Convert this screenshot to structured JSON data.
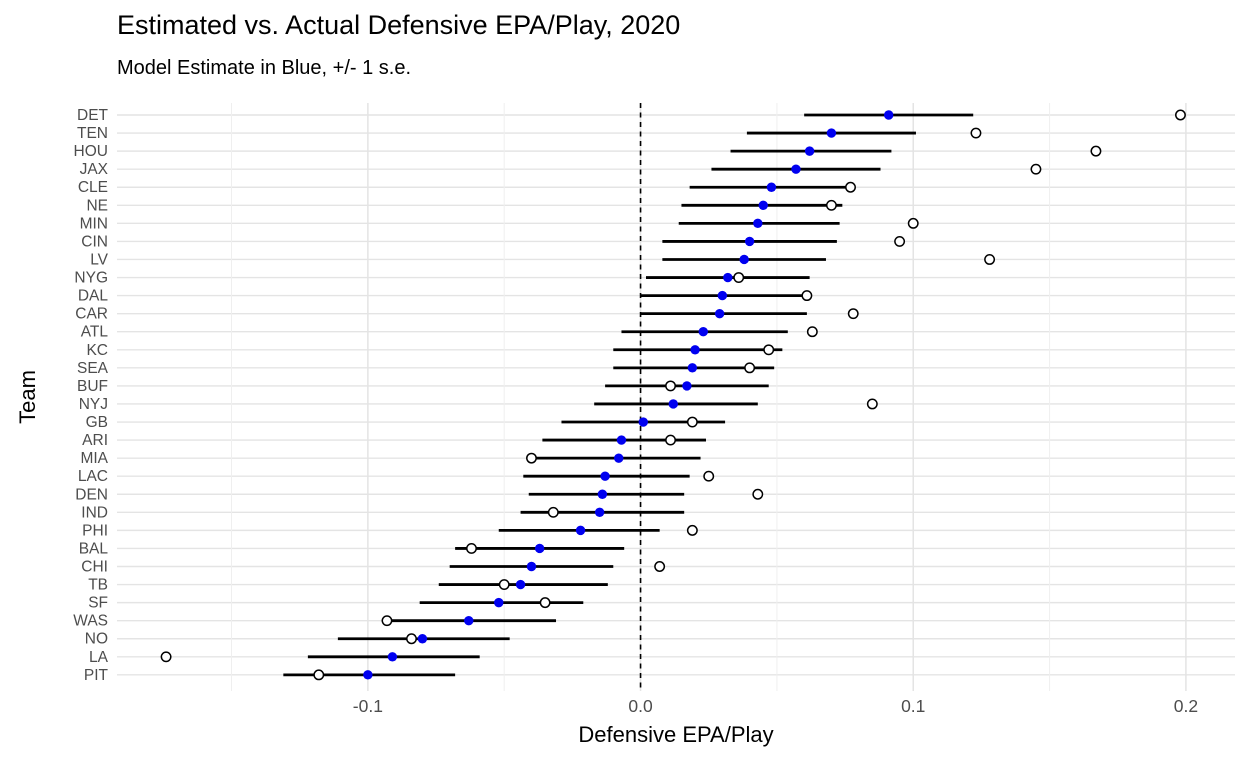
{
  "title": "Estimated vs. Actual Defensive EPA/Play, 2020",
  "subtitle": "Model Estimate in Blue, +/- 1 s.e.",
  "colors": {
    "estimate_blue": "#0000F0",
    "actual_outline": "#000000",
    "error_bar": "#000000",
    "zero_line": "#000000",
    "grid_major": "#E4E4E4",
    "grid_minor": "#EFEFEF",
    "tick_text": "#4D4D4D",
    "background": "#FFFFFF"
  },
  "chart_data": {
    "type": "scatter",
    "variant": "dot-and-error-bar (forest plot), horizontal",
    "title": "Estimated vs. Actual Defensive EPA/Play, 2020",
    "subtitle": "Model Estimate in Blue, +/- 1 s.e.",
    "xlabel": "Defensive EPA/Play",
    "ylabel": "Team",
    "xlim": [
      -0.192,
      0.218
    ],
    "x_major_ticks": [
      -0.1,
      0.0,
      0.1,
      0.2
    ],
    "x_tick_labels": [
      "-0.1",
      "0.0",
      "0.1",
      "0.2"
    ],
    "x_minor_ticks": [
      -0.15,
      -0.05,
      0.05,
      0.15
    ],
    "zero_reference_line": {
      "x": 0.0,
      "style": "dashed"
    },
    "grid": true,
    "legend_position": "none",
    "series_legend": [
      {
        "name": "Model Estimate (+/- 1 s.e.)",
        "marker": "filled-circle",
        "color": "#0000F0"
      },
      {
        "name": "Actual",
        "marker": "open-circle",
        "color": "#000000"
      }
    ],
    "rows": [
      {
        "team": "DET",
        "estimate": 0.091,
        "lower": 0.06,
        "upper": 0.122,
        "actual": 0.198
      },
      {
        "team": "TEN",
        "estimate": 0.07,
        "lower": 0.039,
        "upper": 0.101,
        "actual": 0.123
      },
      {
        "team": "HOU",
        "estimate": 0.062,
        "lower": 0.033,
        "upper": 0.092,
        "actual": 0.167
      },
      {
        "team": "JAX",
        "estimate": 0.057,
        "lower": 0.026,
        "upper": 0.088,
        "actual": 0.145
      },
      {
        "team": "CLE",
        "estimate": 0.048,
        "lower": 0.018,
        "upper": 0.077,
        "actual": 0.077
      },
      {
        "team": "NE",
        "estimate": 0.045,
        "lower": 0.015,
        "upper": 0.074,
        "actual": 0.07
      },
      {
        "team": "MIN",
        "estimate": 0.043,
        "lower": 0.014,
        "upper": 0.073,
        "actual": 0.1
      },
      {
        "team": "CIN",
        "estimate": 0.04,
        "lower": 0.008,
        "upper": 0.072,
        "actual": 0.095
      },
      {
        "team": "LV",
        "estimate": 0.038,
        "lower": 0.008,
        "upper": 0.068,
        "actual": 0.128
      },
      {
        "team": "NYG",
        "estimate": 0.032,
        "lower": 0.002,
        "upper": 0.062,
        "actual": 0.036
      },
      {
        "team": "DAL",
        "estimate": 0.03,
        "lower": 0.0,
        "upper": 0.06,
        "actual": 0.061
      },
      {
        "team": "CAR",
        "estimate": 0.029,
        "lower": 0.0,
        "upper": 0.061,
        "actual": 0.078
      },
      {
        "team": "ATL",
        "estimate": 0.023,
        "lower": -0.007,
        "upper": 0.054,
        "actual": 0.063
      },
      {
        "team": "KC",
        "estimate": 0.02,
        "lower": -0.01,
        "upper": 0.052,
        "actual": 0.047
      },
      {
        "team": "SEA",
        "estimate": 0.019,
        "lower": -0.01,
        "upper": 0.049,
        "actual": 0.04
      },
      {
        "team": "BUF",
        "estimate": 0.017,
        "lower": -0.013,
        "upper": 0.047,
        "actual": 0.011
      },
      {
        "team": "NYJ",
        "estimate": 0.012,
        "lower": -0.017,
        "upper": 0.043,
        "actual": 0.085
      },
      {
        "team": "GB",
        "estimate": 0.001,
        "lower": -0.029,
        "upper": 0.031,
        "actual": 0.019
      },
      {
        "team": "ARI",
        "estimate": -0.007,
        "lower": -0.036,
        "upper": 0.024,
        "actual": 0.011
      },
      {
        "team": "MIA",
        "estimate": -0.008,
        "lower": -0.04,
        "upper": 0.022,
        "actual": -0.04
      },
      {
        "team": "LAC",
        "estimate": -0.013,
        "lower": -0.043,
        "upper": 0.018,
        "actual": 0.025
      },
      {
        "team": "DEN",
        "estimate": -0.014,
        "lower": -0.041,
        "upper": 0.016,
        "actual": 0.043
      },
      {
        "team": "IND",
        "estimate": -0.015,
        "lower": -0.044,
        "upper": 0.016,
        "actual": -0.032
      },
      {
        "team": "PHI",
        "estimate": -0.022,
        "lower": -0.052,
        "upper": 0.007,
        "actual": 0.019
      },
      {
        "team": "BAL",
        "estimate": -0.037,
        "lower": -0.068,
        "upper": -0.006,
        "actual": -0.062
      },
      {
        "team": "CHI",
        "estimate": -0.04,
        "lower": -0.07,
        "upper": -0.01,
        "actual": 0.007
      },
      {
        "team": "TB",
        "estimate": -0.044,
        "lower": -0.074,
        "upper": -0.012,
        "actual": -0.05
      },
      {
        "team": "SF",
        "estimate": -0.052,
        "lower": -0.081,
        "upper": -0.021,
        "actual": -0.035
      },
      {
        "team": "WAS",
        "estimate": -0.063,
        "lower": -0.093,
        "upper": -0.031,
        "actual": -0.093
      },
      {
        "team": "NO",
        "estimate": -0.08,
        "lower": -0.111,
        "upper": -0.048,
        "actual": -0.084
      },
      {
        "team": "LA",
        "estimate": -0.091,
        "lower": -0.122,
        "upper": -0.059,
        "actual": -0.174
      },
      {
        "team": "PIT",
        "estimate": -0.1,
        "lower": -0.131,
        "upper": -0.068,
        "actual": -0.118
      }
    ]
  }
}
